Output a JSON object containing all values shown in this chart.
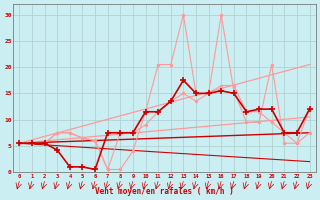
{
  "bg_color": "#cbeef3",
  "grid_color": "#aacccc",
  "xlabel": "Vent moyen/en rafales ( km/h )",
  "x_ticks": [
    0,
    1,
    2,
    3,
    4,
    5,
    6,
    7,
    8,
    9,
    10,
    11,
    12,
    13,
    14,
    15,
    16,
    17,
    18,
    19,
    20,
    21,
    22,
    23
  ],
  "ylim": [
    0,
    32
  ],
  "xlim": [
    -0.5,
    23.5
  ],
  "y_ticks": [
    0,
    5,
    10,
    15,
    20,
    25,
    30
  ],
  "line1_x": [
    0,
    1,
    2,
    3,
    4,
    5,
    6,
    7,
    8,
    9,
    10,
    11,
    12,
    13,
    14,
    15,
    16,
    17,
    18,
    19,
    20,
    21,
    22,
    23
  ],
  "line1_y": [
    5.5,
    5.5,
    5.5,
    4.2,
    1.0,
    1.0,
    0.5,
    7.5,
    7.5,
    7.5,
    11.5,
    11.5,
    13.5,
    17.5,
    15.0,
    15.0,
    15.5,
    15.0,
    11.5,
    12.0,
    12.0,
    7.5,
    7.5,
    12.0
  ],
  "line1_color": "#cc0000",
  "line1_marker": "+",
  "line1_ms": 4,
  "line1_lw": 1.2,
  "line2_x": [
    0,
    1,
    2,
    3,
    4,
    5,
    6,
    7,
    8,
    9,
    10,
    11,
    12,
    13,
    14,
    15,
    16,
    17,
    18,
    19,
    20,
    21,
    22,
    23
  ],
  "line2_y": [
    5.5,
    5.5,
    5.5,
    7.5,
    7.5,
    6.5,
    6.0,
    0.5,
    0.5,
    4.0,
    11.5,
    20.5,
    20.5,
    30.0,
    15.0,
    15.0,
    30.0,
    15.5,
    9.5,
    9.5,
    20.5,
    5.5,
    5.5,
    12.0
  ],
  "line2_color": "#ff9999",
  "line2_marker": "o",
  "line2_ms": 2,
  "line2_lw": 0.8,
  "line3_x": [
    0,
    1,
    2,
    3,
    4,
    5,
    6,
    7,
    8,
    9,
    10,
    11,
    12,
    13,
    14,
    15,
    16,
    17,
    18,
    19,
    20,
    21,
    22,
    23
  ],
  "line3_y": [
    5.5,
    5.5,
    5.5,
    7.5,
    7.5,
    6.5,
    6.0,
    0.5,
    7.5,
    7.5,
    9.0,
    11.5,
    13.5,
    15.0,
    13.5,
    15.0,
    16.5,
    16.5,
    11.5,
    11.5,
    9.5,
    7.5,
    5.5,
    7.5
  ],
  "line3_color": "#ff9999",
  "line3_marker": "o",
  "line3_ms": 2,
  "line3_lw": 0.8,
  "trend1_x": [
    0,
    23
  ],
  "trend1_y": [
    5.5,
    7.5
  ],
  "trend1_color": "#cc0000",
  "trend1_lw": 1.0,
  "trend2_x": [
    0,
    23
  ],
  "trend2_y": [
    5.5,
    10.5
  ],
  "trend2_color": "#ff9999",
  "trend2_lw": 0.9,
  "trend3_x": [
    0,
    23
  ],
  "trend3_y": [
    5.5,
    20.5
  ],
  "trend3_color": "#ff9999",
  "trend3_lw": 0.9,
  "trend4_x": [
    0,
    23
  ],
  "trend4_y": [
    5.5,
    2.0
  ],
  "trend4_color": "#cc0000",
  "trend4_lw": 0.8
}
